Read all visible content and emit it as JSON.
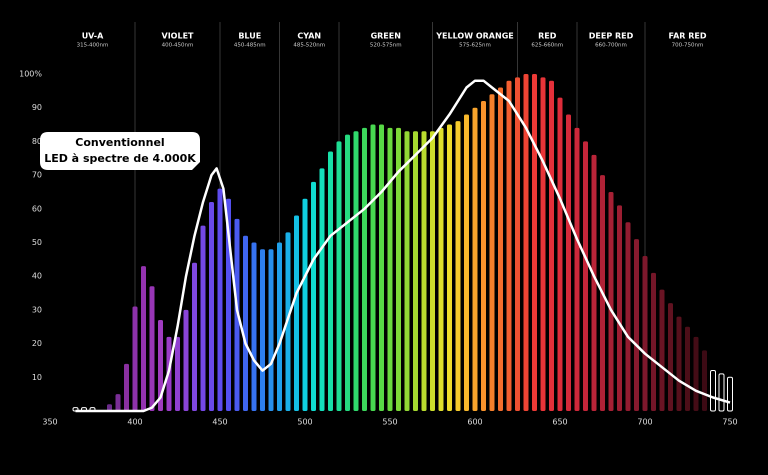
{
  "chart_data": {
    "type": "bar",
    "xlim": [
      350,
      750
    ],
    "ylim": [
      0,
      100
    ],
    "xticks": [
      350,
      400,
      450,
      500,
      550,
      600,
      650,
      700,
      750
    ],
    "yticks": [
      10,
      20,
      30,
      40,
      50,
      60,
      70,
      80,
      90,
      {
        "value": 100,
        "label": "100%"
      }
    ],
    "bands": [
      {
        "name": "UV-A",
        "range": "315-400nm"
      },
      {
        "name": "VIOLET",
        "range": "400-450nm"
      },
      {
        "name": "BLUE",
        "range": "450-485nm"
      },
      {
        "name": "CYAN",
        "range": "485-520nm"
      },
      {
        "name": "GREEN",
        "range": "520-575nm"
      },
      {
        "name": "YELLOW ORANGE",
        "range": "575-625nm"
      },
      {
        "name": "RED",
        "range": "625-660nm"
      },
      {
        "name": "DEEP RED",
        "range": "660-700nm"
      },
      {
        "name": "FAR RED",
        "range": "700-750nm"
      }
    ],
    "band_edges": [
      350,
      400,
      450,
      485,
      520,
      575,
      625,
      660,
      700,
      750
    ],
    "bars": {
      "x": [
        365,
        370,
        375,
        385,
        390,
        395,
        400,
        405,
        410,
        415,
        420,
        425,
        430,
        435,
        440,
        445,
        450,
        455,
        460,
        465,
        470,
        475,
        480,
        485,
        490,
        495,
        500,
        505,
        510,
        515,
        520,
        525,
        530,
        535,
        540,
        545,
        550,
        555,
        560,
        565,
        570,
        575,
        580,
        585,
        590,
        595,
        600,
        605,
        610,
        615,
        620,
        625,
        630,
        635,
        640,
        645,
        650,
        655,
        660,
        665,
        670,
        675,
        680,
        685,
        690,
        695,
        700,
        705,
        710,
        715,
        720,
        725,
        730,
        735,
        740,
        745,
        750
      ],
      "values": [
        1,
        1,
        1,
        2,
        5,
        14,
        31,
        43,
        37,
        27,
        22,
        22,
        30,
        44,
        55,
        62,
        66,
        63,
        57,
        52,
        50,
        48,
        48,
        50,
        53,
        58,
        63,
        68,
        72,
        77,
        80,
        82,
        83,
        84,
        85,
        85,
        84,
        84,
        83,
        83,
        83,
        83,
        84,
        85,
        86,
        88,
        90,
        92,
        94,
        96,
        98,
        99,
        100,
        100,
        99,
        98,
        93,
        88,
        84,
        80,
        76,
        70,
        65,
        61,
        56,
        51,
        46,
        41,
        36,
        32,
        28,
        25,
        22,
        18,
        12,
        11,
        10
      ],
      "colors": [
        null,
        null,
        null,
        "#6a2a8a",
        "#7a2e96",
        "#8a30a0",
        "#8e32aa",
        "#9433b0",
        "#9836b6",
        "#a03cc0",
        "#9a3cc8",
        "#9040d0",
        "#8a44d8",
        "#8048e0",
        "#7448e6",
        "#6a4aea",
        "#5e4cee",
        "#5450f0",
        "#4a5af0",
        "#4066f0",
        "#3672f0",
        "#2e80ee",
        "#2890ec",
        "#20a0ea",
        "#1ab0e8",
        "#14c0e4",
        "#10d0e0",
        "#10dcd0",
        "#14e0bc",
        "#18e0a8",
        "#1ede94",
        "#26dc80",
        "#30da6c",
        "#3cd85c",
        "#48d850",
        "#58d846",
        "#6ad83e",
        "#7ed838",
        "#92d834",
        "#a6da30",
        "#badc2e",
        "#ccde2c",
        "#dede2c",
        "#eedc2c",
        "#f6cc2c",
        "#f8b82c",
        "#f8a42c",
        "#f8922c",
        "#f6802c",
        "#f46e2e",
        "#f25e30",
        "#f05032",
        "#ee4434",
        "#ec3a36",
        "#e83438",
        "#e4303a",
        "#de2c3a",
        "#d62a3a",
        "#ce283a",
        "#c4263a",
        "#ba2438",
        "#b02236",
        "#a62034",
        "#9c1e32",
        "#921c30",
        "#881a2e",
        "#7e182c",
        "#741628",
        "#6a1424",
        "#601220",
        "#56101c",
        "#4c0e18",
        "#440c16",
        "#3c0a14",
        null,
        null,
        null
      ]
    },
    "line": {
      "label": [
        "Conventionnel",
        "LED à spectre de 4.000K"
      ],
      "color": "#ffffff",
      "x": [
        365,
        380,
        395,
        405,
        410,
        415,
        420,
        425,
        430,
        435,
        440,
        445,
        448,
        452,
        456,
        460,
        465,
        470,
        475,
        480,
        485,
        495,
        505,
        515,
        525,
        535,
        545,
        555,
        565,
        575,
        585,
        595,
        600,
        605,
        610,
        620,
        630,
        640,
        650,
        660,
        670,
        680,
        690,
        700,
        710,
        720,
        730,
        740,
        750
      ],
      "values": [
        0,
        0,
        0,
        0,
        1,
        4,
        12,
        25,
        40,
        52,
        62,
        70,
        72,
        66,
        48,
        30,
        20,
        15,
        12,
        14,
        20,
        35,
        45,
        52,
        56,
        60,
        65,
        71,
        76,
        81,
        88,
        96,
        98,
        98,
        96,
        92,
        84,
        74,
        63,
        51,
        40,
        30,
        22,
        17,
        13,
        9,
        6,
        4,
        2.5
      ]
    }
  }
}
